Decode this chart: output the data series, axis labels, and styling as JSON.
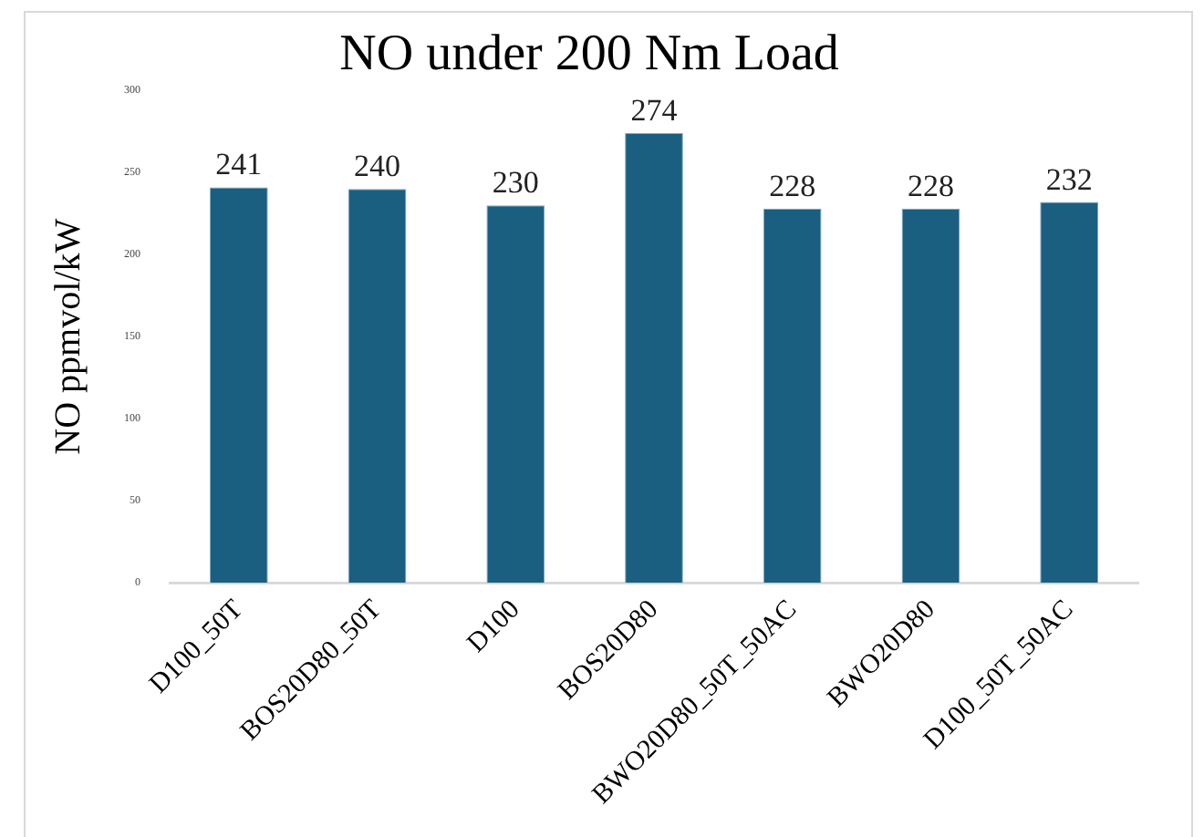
{
  "chart_data": {
    "type": "bar",
    "title": "NO under 200 Nm Load",
    "ylabel": "NO ppmvol/kW",
    "categories": [
      "D100_50T",
      "BOS20D80_50T",
      "D100",
      "BOS20D80",
      "BWO20D80_50T_50AC",
      "BWO20D80",
      "D100_50T_50AC"
    ],
    "values": [
      241,
      240,
      230,
      274,
      228,
      228,
      232
    ],
    "color": "#1a5f80",
    "ylim": [
      0,
      300
    ],
    "yticks": [
      0,
      50,
      100,
      150,
      200,
      250,
      300
    ],
    "grid": false,
    "legend": false,
    "data_labels": true
  }
}
